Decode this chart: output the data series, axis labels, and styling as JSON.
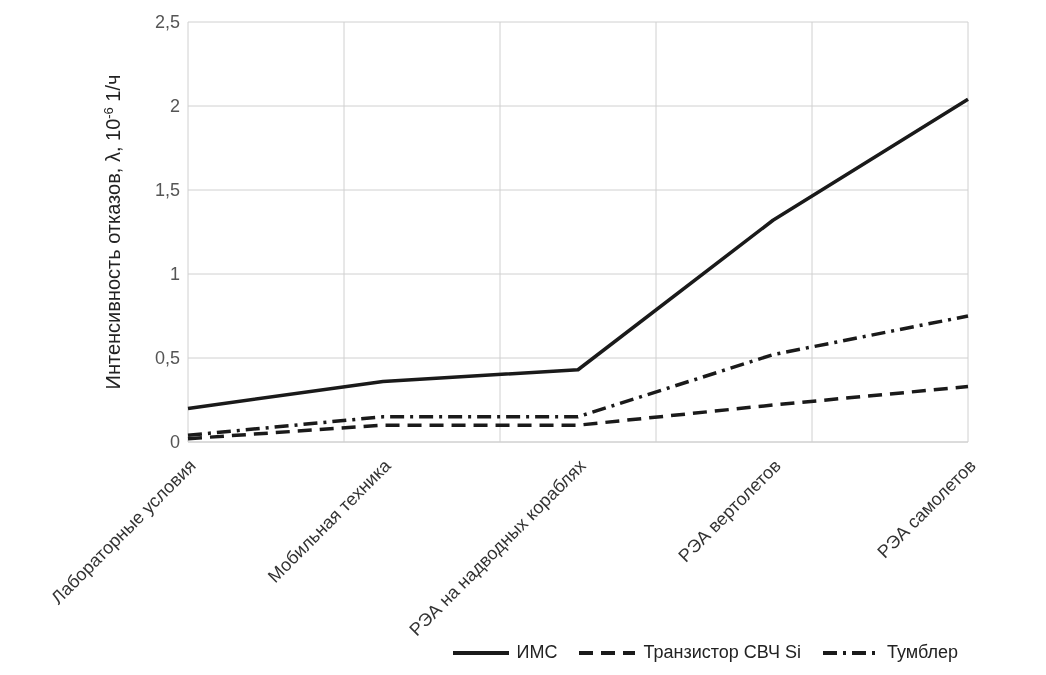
{
  "chart_data": {
    "type": "line",
    "ylabel": "Интенсивность отказов, λ, 10$^{-6}$ 1/ч",
    "categories": [
      "Лабораторные условия",
      "Мобильная техника",
      "РЭА на надводных кораблях",
      "РЭА вертолетов",
      "РЭА самолетов"
    ],
    "series": [
      {
        "name": "ИМС",
        "color": "#1a1a1a",
        "line_style": "solid",
        "values": [
          0.2,
          0.36,
          0.43,
          1.32,
          2.04
        ]
      },
      {
        "name": "Транзистор СВЧ Si",
        "color": "#1a1a1a",
        "line_style": "dashed",
        "values": [
          0.02,
          0.1,
          0.1,
          0.22,
          0.33
        ]
      },
      {
        "name": "Тумблер",
        "color": "#1a1a1a",
        "line_style": "dashdot",
        "values": [
          0.04,
          0.15,
          0.15,
          0.52,
          0.75
        ]
      }
    ],
    "ylim": [
      0,
      2.5
    ],
    "yticks": [
      0,
      {
        "value": 0.5,
        "label": "0,5"
      },
      1,
      {
        "value": 1.5,
        "label": "1,5"
      },
      2,
      {
        "value": 2.5,
        "label": "2,5"
      }
    ],
    "grid": true,
    "legend": "bottom",
    "marker": "none"
  }
}
